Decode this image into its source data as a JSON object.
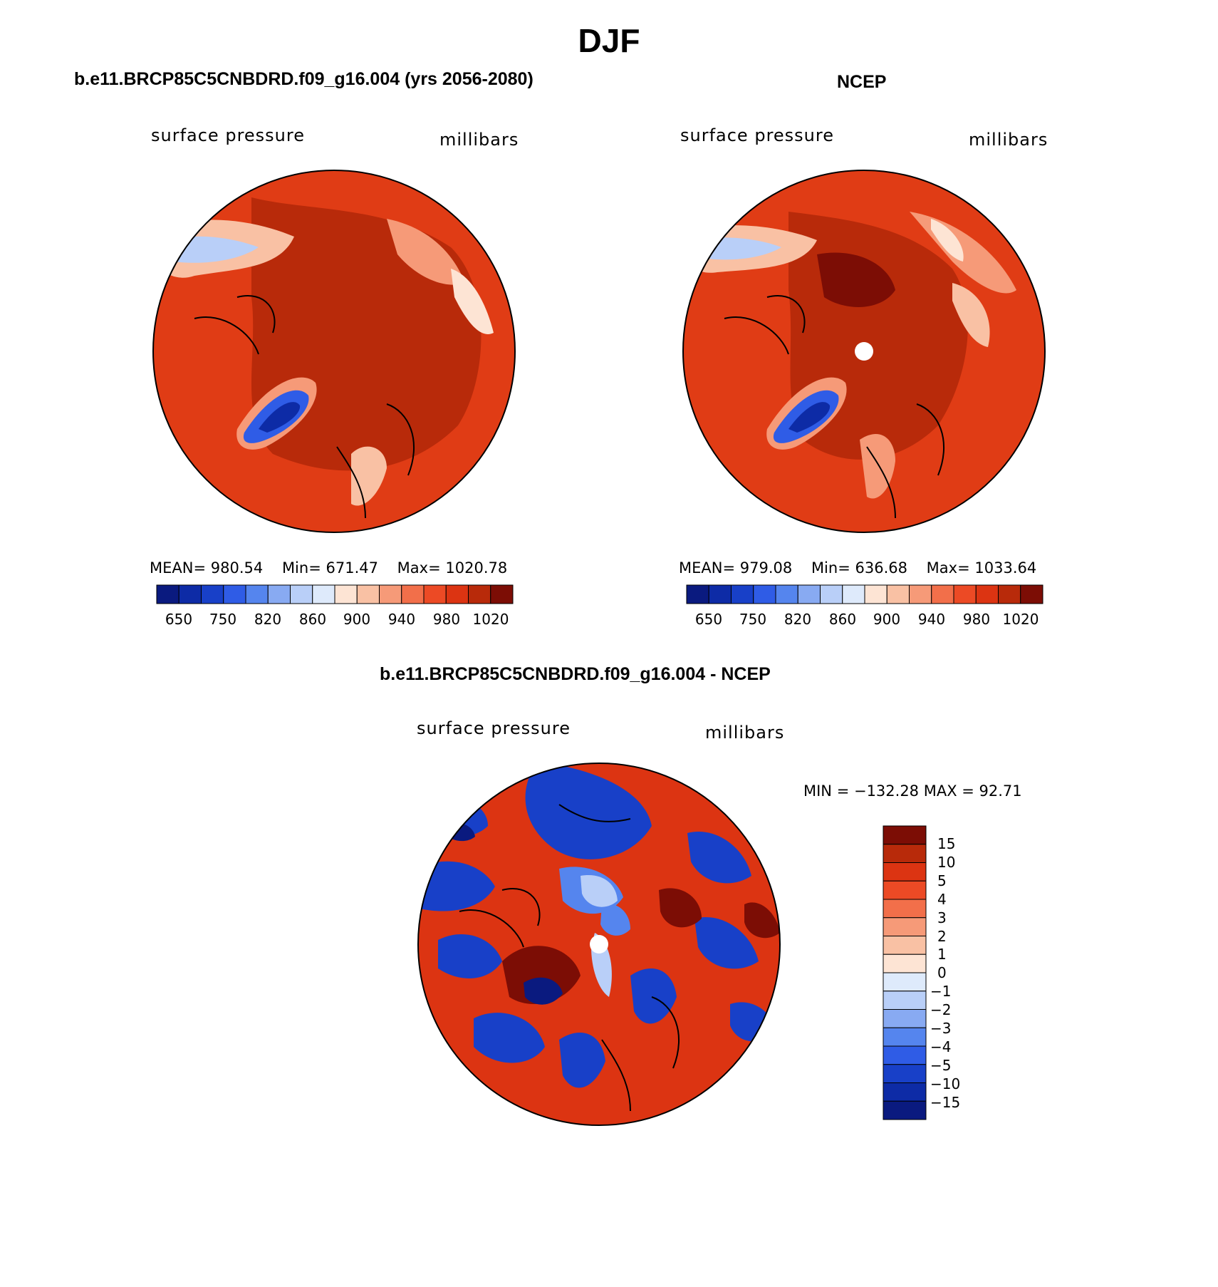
{
  "title": "DJF",
  "panels": [
    {
      "title": "b.e11.BRCP85C5CNBDRD.f09_g16.004 (yrs 2056-2080)",
      "variable": "surface pressure",
      "units": "millibars",
      "stats": {
        "mean_label": "MEAN=",
        "mean": "980.54",
        "min_label": "Min=",
        "min": "671.47",
        "max_label": "Max=",
        "max": "1020.78"
      },
      "colorbar_labels": [
        "650",
        "750",
        "820",
        "860",
        "900",
        "940",
        "980",
        "1020"
      ]
    },
    {
      "title": "NCEP",
      "variable": "surface pressure",
      "units": "millibars",
      "stats": {
        "mean_label": "MEAN=",
        "mean": "979.08",
        "min_label": "Min=",
        "min": "636.68",
        "max_label": "Max=",
        "max": "1033.64"
      },
      "colorbar_labels": [
        "650",
        "750",
        "820",
        "860",
        "900",
        "940",
        "980",
        "1020"
      ]
    }
  ],
  "diff_panel": {
    "title": "b.e11.BRCP85C5CNBDRD.f09_g16.004 - NCEP",
    "variable": "surface pressure",
    "units": "millibars",
    "minmax": "MIN = −132.28 MAX =   92.71",
    "colorbar_labels": [
      "15",
      "10",
      "5",
      "4",
      "3",
      "2",
      "1",
      "0",
      "−1",
      "−2",
      "−3",
      "−4",
      "−5",
      "−10",
      "−15"
    ]
  },
  "colors": {
    "abs_scale": [
      "#0a1a7f",
      "#0d2ba6",
      "#1840c8",
      "#2f5ce6",
      "#5585ee",
      "#88aaf2",
      "#b9cff8",
      "#deeafb",
      "#fde4d4",
      "#f9c1a4",
      "#f69a78",
      "#f26f4a",
      "#ec4a25",
      "#dc3412",
      "#b82a0a",
      "#7c0d05"
    ],
    "diff_scale": [
      "#0a1a7f",
      "#0d2ba6",
      "#1840c8",
      "#2f5ce6",
      "#5585ee",
      "#88aaf2",
      "#b9cff8",
      "#deeafb",
      "#fde4d4",
      "#f9c1a4",
      "#f69a78",
      "#f26f4a",
      "#ec4a25",
      "#dc3412",
      "#b82a0a",
      "#7c0d05"
    ]
  }
}
